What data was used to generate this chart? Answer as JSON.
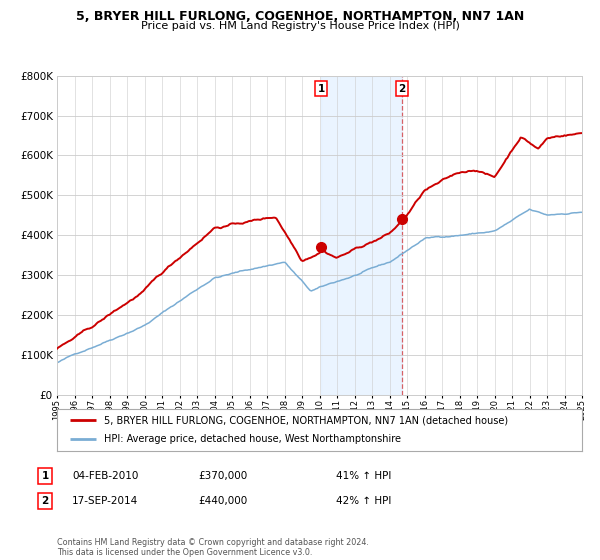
{
  "title": "5, BRYER HILL FURLONG, COGENHOE, NORTHAMPTON, NN7 1AN",
  "subtitle": "Price paid vs. HM Land Registry's House Price Index (HPI)",
  "legend_red": "5, BRYER HILL FURLONG, COGENHOE, NORTHAMPTON, NN7 1AN (detached house)",
  "legend_blue": "HPI: Average price, detached house, West Northamptonshire",
  "annotation1_label": "1",
  "annotation1_date": "04-FEB-2010",
  "annotation1_price": "£370,000",
  "annotation1_hpi": "41% ↑ HPI",
  "annotation2_label": "2",
  "annotation2_date": "17-SEP-2014",
  "annotation2_price": "£440,000",
  "annotation2_hpi": "42% ↑ HPI",
  "footer": "Contains HM Land Registry data © Crown copyright and database right 2024.\nThis data is licensed under the Open Government Licence v3.0.",
  "red_color": "#cc0000",
  "blue_color": "#7aadd4",
  "bg_color": "#ffffff",
  "grid_color": "#cccccc",
  "shade_color": "#ddeeff",
  "ylim": [
    0,
    800000
  ],
  "yticks": [
    0,
    100000,
    200000,
    300000,
    400000,
    500000,
    600000,
    700000,
    800000
  ],
  "ytick_labels": [
    "£0",
    "£100K",
    "£200K",
    "£300K",
    "£400K",
    "£500K",
    "£600K",
    "£700K",
    "£800K"
  ],
  "sale1_x": 2010.09,
  "sale1_y": 370000,
  "sale2_x": 2014.72,
  "sale2_y": 440000,
  "shade_x1": 2010.09,
  "shade_x2": 2014.72,
  "vline_x": 2014.72,
  "xlim_left": 1995,
  "xlim_right": 2025
}
